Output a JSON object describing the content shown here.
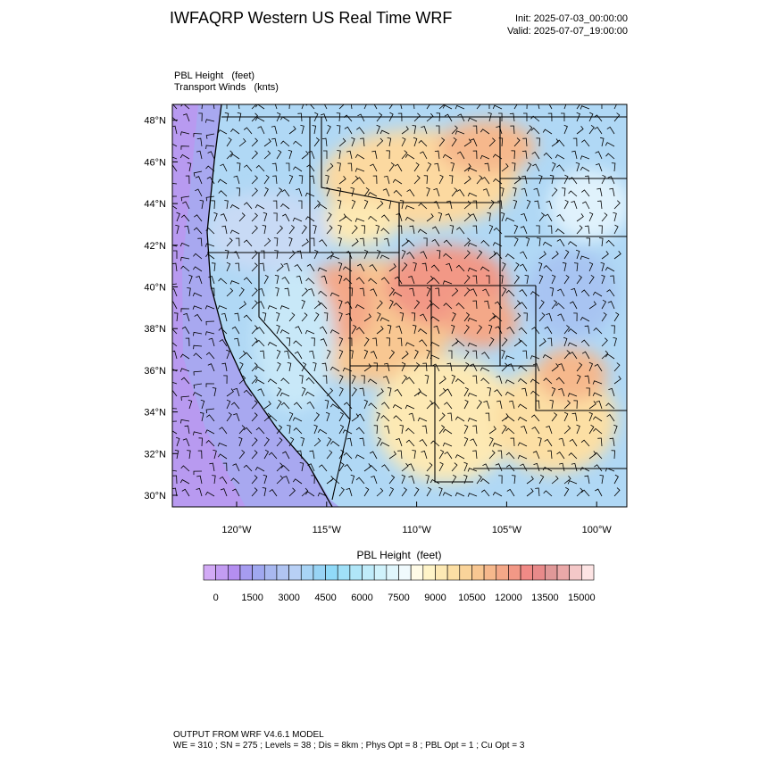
{
  "header": {
    "title": "IWFAQRP Western US Real Time WRF",
    "init": "Init: 2025-07-03_00:00:00",
    "valid": "Valid: 2025-07-07_19:00:00"
  },
  "fields": [
    "PBL Height   (feet)",
    "Transport Winds   (knts)"
  ],
  "map": {
    "lat_labels": [
      "30°N",
      "32°N",
      "34°N",
      "36°N",
      "38°N",
      "40°N",
      "42°N",
      "44°N",
      "46°N",
      "48°N"
    ],
    "lon_labels": [
      "120°W",
      "115°W",
      "110°W",
      "105°W",
      "100°W"
    ]
  },
  "colorbar": {
    "title": "PBL Height  (feet)",
    "ticks": [
      0,
      1500,
      3000,
      4500,
      6000,
      7500,
      9000,
      10500,
      12000,
      13500,
      15000
    ],
    "colors": [
      "#d2aaf5",
      "#c39cf2",
      "#b48ef0",
      "#a69cf0",
      "#a0a8f0",
      "#a8b8f0",
      "#b0c4f2",
      "#b8d0f5",
      "#a8d4f5",
      "#98d4f5",
      "#90daf8",
      "#a0e0f8",
      "#b0e6f8",
      "#c0ecfa",
      "#d0f2fb",
      "#e0f6fc",
      "#f0fafd",
      "#fffbe6",
      "#fff4c8",
      "#fde9b4",
      "#fcdfa4",
      "#fad49a",
      "#f8c792",
      "#f6b88c",
      "#f4a888",
      "#f29886",
      "#f08a86",
      "#e88a8a",
      "#e09898",
      "#eaa8a8",
      "#f4c8c8",
      "#fde4e4"
    ]
  },
  "footer": [
    "OUTPUT FROM WRF V4.6.1 MODEL",
    "WE = 310 ; SN = 275 ; Levels = 38 ; Dis = 8km ; Phys Opt = 8 ; PBL Opt = 1 ; Cu Opt = 3"
  ]
}
